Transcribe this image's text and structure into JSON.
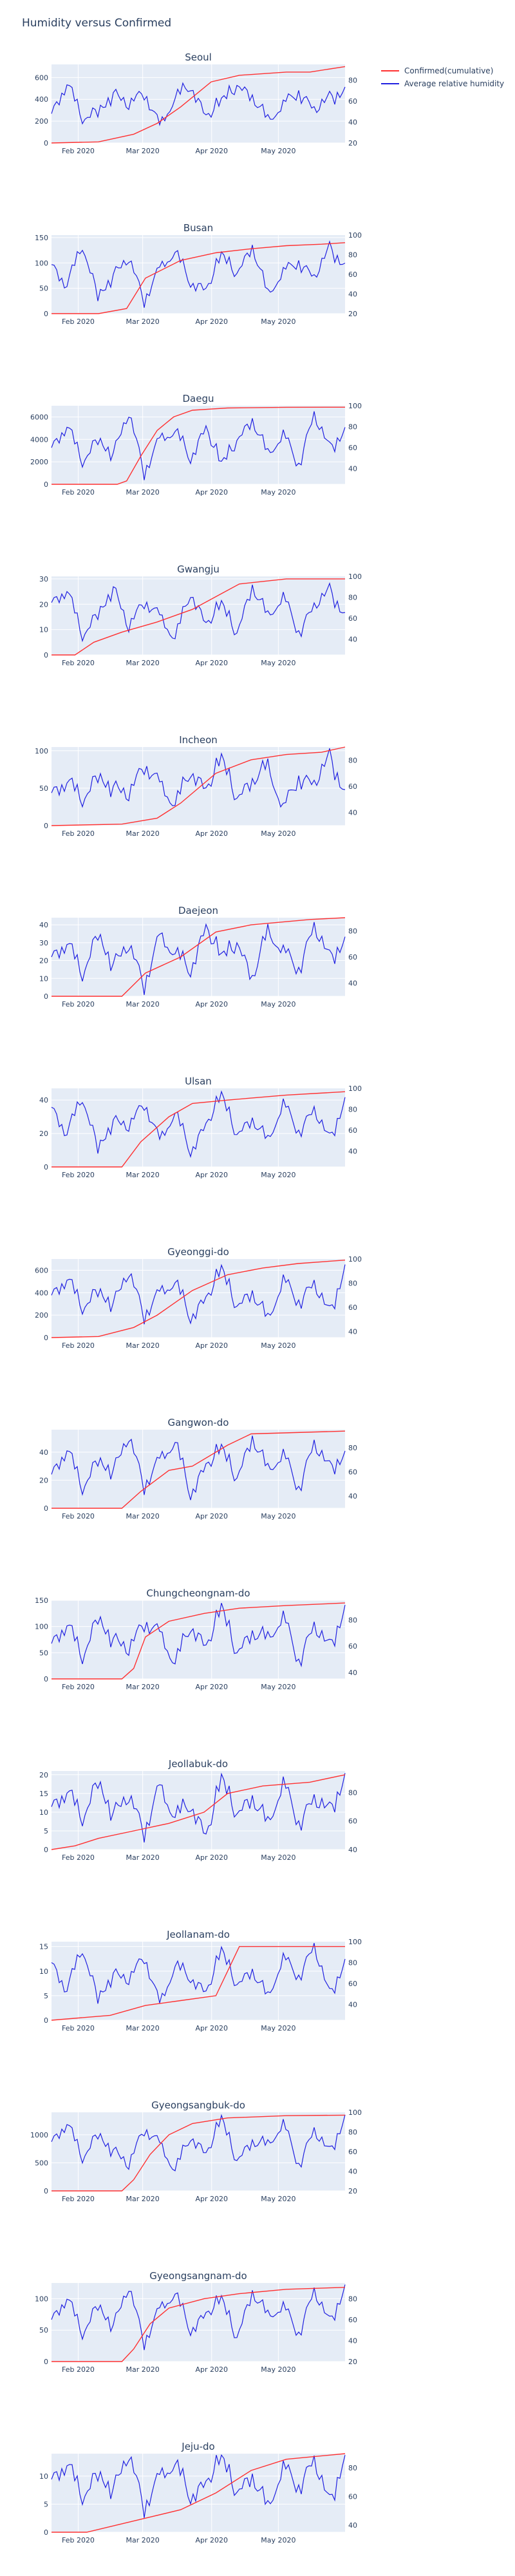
{
  "title": "Humidity versus Confirmed",
  "legend": [
    {
      "name": "Confirmed(cumulative)",
      "color": "#ff3030"
    },
    {
      "name": "Average relative humidity",
      "color": "#2020e0"
    }
  ],
  "colors": {
    "plot_bg": "#e5ecf6",
    "grid": "#ffffff",
    "axis_text": "#2a3f5f",
    "confirmed": "#ff3030",
    "humidity": "#2020e0"
  },
  "chart_data": [
    {
      "type": "line",
      "title": "Seoul",
      "x_tick_labels": [
        "Feb 2020",
        "Mar 2020",
        "Apr 2020",
        "May 2020"
      ],
      "x_range": [
        "2020-01-20",
        "2020-05-31"
      ],
      "y_left_ticks": [
        0,
        200,
        400,
        600
      ],
      "y_left_range": [
        0,
        720
      ],
      "y_right_ticks": [
        20,
        40,
        60,
        80
      ],
      "y_right_range": [
        20,
        95
      ],
      "confirmed": [
        [
          0,
          0
        ],
        [
          20,
          10
        ],
        [
          35,
          80
        ],
        [
          45,
          180
        ],
        [
          55,
          330
        ],
        [
          68,
          560
        ],
        [
          80,
          620
        ],
        [
          100,
          650
        ],
        [
          110,
          650
        ],
        [
          125,
          700
        ]
      ],
      "humidity": [
        48,
        78,
        42,
        52,
        68,
        55,
        70,
        36,
        62,
        75,
        46,
        58,
        74,
        66,
        40,
        56,
        70,
        50,
        64,
        72
      ]
    },
    {
      "type": "line",
      "title": "Busan",
      "x_tick_labels": [
        "Feb 2020",
        "Mar 2020",
        "Apr 2020",
        "May 2020"
      ],
      "x_range": [
        "2020-01-20",
        "2020-05-31"
      ],
      "y_left_ticks": [
        0,
        50,
        100,
        150
      ],
      "y_left_range": [
        0,
        155
      ],
      "y_right_ticks": [
        20,
        40,
        60,
        80,
        100
      ],
      "y_right_range": [
        20,
        100
      ],
      "confirmed": [
        [
          0,
          0
        ],
        [
          20,
          0
        ],
        [
          32,
          10
        ],
        [
          40,
          70
        ],
        [
          55,
          105
        ],
        [
          70,
          120
        ],
        [
          85,
          128
        ],
        [
          100,
          134
        ],
        [
          115,
          137
        ],
        [
          125,
          140
        ]
      ],
      "humidity": [
        70,
        50,
        88,
        40,
        60,
        75,
        35,
        66,
        82,
        52,
        45,
        78,
        60,
        90,
        38,
        62,
        74,
        55,
        88,
        70
      ]
    },
    {
      "type": "line",
      "title": "Daegu",
      "x_tick_labels": [
        "Feb 2020",
        "Mar 2020",
        "Apr 2020",
        "May 2020"
      ],
      "x_range": [
        "2020-01-20",
        "2020-05-31"
      ],
      "y_left_ticks": [
        0,
        2000,
        4000,
        6000
      ],
      "y_left_range": [
        0,
        7000
      ],
      "y_right_ticks": [
        40,
        60,
        80,
        100
      ],
      "y_right_range": [
        25,
        100
      ],
      "confirmed": [
        [
          0,
          0
        ],
        [
          28,
          0
        ],
        [
          32,
          300
        ],
        [
          38,
          2500
        ],
        [
          45,
          4800
        ],
        [
          52,
          6000
        ],
        [
          60,
          6600
        ],
        [
          75,
          6800
        ],
        [
          100,
          6860
        ],
        [
          125,
          6870
        ]
      ],
      "humidity": [
        60,
        82,
        45,
        70,
        55,
        92,
        38,
        68,
        75,
        50,
        80,
        42,
        66,
        88,
        52,
        72,
        45,
        90,
        60,
        78
      ]
    },
    {
      "type": "line",
      "title": "Gwangju",
      "x_tick_labels": [
        "Feb 2020",
        "Mar 2020",
        "Apr 2020",
        "May 2020"
      ],
      "x_range": [
        "2020-01-20",
        "2020-05-31"
      ],
      "y_left_ticks": [
        0,
        10,
        20,
        30
      ],
      "y_left_range": [
        0,
        31
      ],
      "y_right_ticks": [
        40,
        60,
        80,
        100
      ],
      "y_right_range": [
        25,
        100
      ],
      "confirmed": [
        [
          0,
          0
        ],
        [
          10,
          0
        ],
        [
          18,
          5
        ],
        [
          30,
          9
        ],
        [
          45,
          13
        ],
        [
          60,
          18
        ],
        [
          72,
          24
        ],
        [
          80,
          28
        ],
        [
          100,
          30
        ],
        [
          125,
          30
        ]
      ],
      "humidity": [
        75,
        88,
        42,
        66,
        90,
        50,
        78,
        62,
        40,
        85,
        55,
        72,
        45,
        92,
        60,
        80,
        48,
        70,
        88,
        64
      ]
    },
    {
      "type": "line",
      "title": "Incheon",
      "x_tick_labels": [
        "Feb 2020",
        "Mar 2020",
        "Apr 2020",
        "May 2020"
      ],
      "x_range": [
        "2020-01-20",
        "2020-05-31"
      ],
      "y_left_ticks": [
        0,
        50,
        100
      ],
      "y_left_range": [
        0,
        105
      ],
      "y_right_ticks": [
        40,
        60,
        80
      ],
      "y_right_range": [
        30,
        90
      ],
      "confirmed": [
        [
          0,
          0
        ],
        [
          30,
          2
        ],
        [
          45,
          10
        ],
        [
          55,
          30
        ],
        [
          70,
          70
        ],
        [
          85,
          88
        ],
        [
          100,
          95
        ],
        [
          115,
          98
        ],
        [
          125,
          105
        ]
      ],
      "humidity": [
        55,
        65,
        48,
        70,
        60,
        52,
        78,
        62,
        45,
        72,
        58,
        80,
        50,
        66,
        74,
        42,
        68,
        60,
        84,
        56
      ]
    },
    {
      "type": "line",
      "title": "Daejeon",
      "x_tick_labels": [
        "Feb 2020",
        "Mar 2020",
        "Apr 2020",
        "May 2020"
      ],
      "x_range": [
        "2020-01-20",
        "2020-05-31"
      ],
      "y_left_ticks": [
        0,
        10,
        20,
        30,
        40
      ],
      "y_left_range": [
        0,
        44
      ],
      "y_right_ticks": [
        40,
        60,
        80
      ],
      "y_right_range": [
        30,
        90
      ],
      "confirmed": [
        [
          0,
          0
        ],
        [
          30,
          0
        ],
        [
          40,
          13
        ],
        [
          55,
          22
        ],
        [
          70,
          36
        ],
        [
          85,
          40
        ],
        [
          110,
          43
        ],
        [
          125,
          44
        ]
      ],
      "humidity": [
        60,
        72,
        45,
        80,
        55,
        68,
        40,
        76,
        62,
        50,
        84,
        58,
        70,
        46,
        78,
        64,
        52,
        82,
        60,
        74
      ]
    },
    {
      "type": "line",
      "title": "Ulsan",
      "x_tick_labels": [
        "Feb 2020",
        "Mar 2020",
        "Apr 2020",
        "May 2020"
      ],
      "x_range": [
        "2020-01-20",
        "2020-05-31"
      ],
      "y_left_ticks": [
        0,
        20,
        40
      ],
      "y_left_range": [
        0,
        47
      ],
      "y_right_ticks": [
        40,
        60,
        80,
        100
      ],
      "y_right_range": [
        25,
        100
      ],
      "confirmed": [
        [
          0,
          0
        ],
        [
          30,
          0
        ],
        [
          38,
          15
        ],
        [
          50,
          30
        ],
        [
          60,
          38
        ],
        [
          75,
          40
        ],
        [
          100,
          43
        ],
        [
          125,
          45
        ]
      ],
      "humidity": [
        82,
        58,
        90,
        45,
        70,
        62,
        88,
        50,
        76,
        40,
        66,
        92,
        55,
        72,
        48,
        85,
        60,
        78,
        52,
        90
      ]
    },
    {
      "type": "line",
      "title": "Gyeonggi-do",
      "x_tick_labels": [
        "Feb 2020",
        "Mar 2020",
        "Apr 2020",
        "May 2020"
      ],
      "x_range": [
        "2020-01-20",
        "2020-05-31"
      ],
      "y_left_ticks": [
        0,
        200,
        400,
        600
      ],
      "y_left_range": [
        0,
        700
      ],
      "y_right_ticks": [
        40,
        60,
        80,
        100
      ],
      "y_right_range": [
        35,
        100
      ],
      "confirmed": [
        [
          0,
          0
        ],
        [
          20,
          10
        ],
        [
          35,
          90
        ],
        [
          45,
          200
        ],
        [
          60,
          420
        ],
        [
          75,
          560
        ],
        [
          90,
          620
        ],
        [
          105,
          660
        ],
        [
          125,
          690
        ]
      ],
      "humidity": [
        70,
        85,
        58,
        76,
        64,
        88,
        55,
        72,
        80,
        52,
        68,
        90,
        60,
        74,
        48,
        82,
        66,
        78,
        56,
        94
      ]
    },
    {
      "type": "line",
      "title": "Gangwon-do",
      "x_tick_labels": [
        "Feb 2020",
        "Mar 2020",
        "Apr 2020",
        "May 2020"
      ],
      "x_range": [
        "2020-01-20",
        "2020-05-31"
      ],
      "y_left_ticks": [
        0,
        20,
        40
      ],
      "y_left_range": [
        0,
        56
      ],
      "y_right_ticks": [
        40,
        60,
        80
      ],
      "y_right_range": [
        30,
        95
      ],
      "confirmed": [
        [
          0,
          0
        ],
        [
          30,
          0
        ],
        [
          38,
          12
        ],
        [
          50,
          27
        ],
        [
          60,
          30
        ],
        [
          75,
          45
        ],
        [
          85,
          53
        ],
        [
          125,
          55
        ]
      ],
      "humidity": [
        58,
        80,
        45,
        72,
        62,
        88,
        50,
        70,
        84,
        42,
        66,
        78,
        54,
        90,
        60,
        74,
        48,
        82,
        64,
        76
      ]
    },
    {
      "type": "line",
      "title": "Chungcheongnam-do",
      "x_tick_labels": [
        "Feb 2020",
        "Mar 2020",
        "Apr 2020",
        "May 2020"
      ],
      "x_range": [
        "2020-01-20",
        "2020-05-31"
      ],
      "y_left_ticks": [
        0,
        50,
        100,
        150
      ],
      "y_left_range": [
        0,
        150
      ],
      "y_right_ticks": [
        40,
        60,
        80
      ],
      "y_right_range": [
        35,
        95
      ],
      "confirmed": [
        [
          0,
          0
        ],
        [
          30,
          0
        ],
        [
          35,
          20
        ],
        [
          40,
          80
        ],
        [
          50,
          110
        ],
        [
          65,
          125
        ],
        [
          80,
          135
        ],
        [
          100,
          140
        ],
        [
          125,
          145
        ]
      ],
      "humidity": [
        62,
        78,
        50,
        84,
        66,
        56,
        80,
        70,
        46,
        76,
        60,
        88,
        54,
        72,
        64,
        82,
        50,
        74,
        60,
        90
      ]
    },
    {
      "type": "line",
      "title": "Jeollabuk-do",
      "x_tick_labels": [
        "Feb 2020",
        "Mar 2020",
        "Apr 2020",
        "May 2020"
      ],
      "x_range": [
        "2020-01-20",
        "2020-05-31"
      ],
      "y_left_ticks": [
        0,
        5,
        10,
        15,
        20
      ],
      "y_left_range": [
        0,
        21
      ],
      "y_right_ticks": [
        40,
        60,
        80
      ],
      "y_right_range": [
        40,
        95
      ],
      "confirmed": [
        [
          0,
          0
        ],
        [
          10,
          1
        ],
        [
          20,
          3
        ],
        [
          35,
          5
        ],
        [
          50,
          7
        ],
        [
          65,
          10
        ],
        [
          75,
          15
        ],
        [
          90,
          17
        ],
        [
          110,
          18
        ],
        [
          125,
          20
        ]
      ],
      "humidity": [
        70,
        82,
        60,
        90,
        66,
        76,
        54,
        84,
        62,
        72,
        50,
        88,
        64,
        78,
        56,
        86,
        60,
        74,
        68,
        92
      ]
    },
    {
      "type": "line",
      "title": "Jeollanam-do",
      "x_tick_labels": [
        "Feb 2020",
        "Mar 2020",
        "Apr 2020",
        "May 2020"
      ],
      "x_range": [
        "2020-01-20",
        "2020-05-31"
      ],
      "y_left_ticks": [
        0,
        5,
        10,
        15
      ],
      "y_left_range": [
        0,
        16
      ],
      "y_right_ticks": [
        40,
        60,
        80,
        100
      ],
      "y_right_range": [
        25,
        100
      ],
      "confirmed": [
        [
          0,
          0
        ],
        [
          25,
          1
        ],
        [
          40,
          3
        ],
        [
          55,
          4
        ],
        [
          70,
          5
        ],
        [
          80,
          15
        ],
        [
          125,
          15
        ]
      ],
      "humidity": [
        80,
        55,
        92,
        48,
        70,
        62,
        88,
        40,
        76,
        66,
        52,
        90,
        58,
        74,
        45,
        84,
        68,
        94,
        50,
        82
      ]
    },
    {
      "type": "line",
      "title": "Gyeongsangbuk-do",
      "x_tick_labels": [
        "Feb 2020",
        "Mar 2020",
        "Apr 2020",
        "May 2020"
      ],
      "x_range": [
        "2020-01-20",
        "2020-05-31"
      ],
      "y_left_ticks": [
        0,
        500,
        1000
      ],
      "y_left_range": [
        0,
        1400
      ],
      "y_right_ticks": [
        20,
        40,
        60,
        80,
        100
      ],
      "y_right_range": [
        20,
        100
      ],
      "confirmed": [
        [
          0,
          0
        ],
        [
          30,
          0
        ],
        [
          35,
          200
        ],
        [
          42,
          650
        ],
        [
          50,
          1000
        ],
        [
          60,
          1200
        ],
        [
          75,
          1300
        ],
        [
          100,
          1340
        ],
        [
          125,
          1350
        ]
      ],
      "humidity": [
        70,
        90,
        52,
        80,
        62,
        45,
        85,
        68,
        40,
        76,
        58,
        92,
        50,
        72,
        65,
        88,
        48,
        80,
        60,
        96
      ]
    },
    {
      "type": "line",
      "title": "Gyeongsangnam-do",
      "x_tick_labels": [
        "Feb 2020",
        "Mar 2020",
        "Apr 2020",
        "May 2020"
      ],
      "x_range": [
        "2020-01-20",
        "2020-05-31"
      ],
      "y_left_ticks": [
        0,
        50,
        100
      ],
      "y_left_range": [
        0,
        125
      ],
      "y_right_ticks": [
        20,
        40,
        60,
        80
      ],
      "y_right_range": [
        20,
        95
      ],
      "confirmed": [
        [
          0,
          0
        ],
        [
          30,
          0
        ],
        [
          35,
          20
        ],
        [
          42,
          60
        ],
        [
          50,
          85
        ],
        [
          65,
          100
        ],
        [
          80,
          108
        ],
        [
          100,
          115
        ],
        [
          125,
          118
        ]
      ],
      "humidity": [
        60,
        82,
        45,
        76,
        55,
        90,
        40,
        70,
        84,
        50,
        66,
        78,
        42,
        88,
        62,
        72,
        48,
        86,
        58,
        92
      ]
    },
    {
      "type": "line",
      "title": "Jeju-do",
      "x_tick_labels": [
        "Feb 2020",
        "Mar 2020",
        "Apr 2020",
        "May 2020"
      ],
      "x_range": [
        "2020-01-20",
        "2020-05-31"
      ],
      "y_left_ticks": [
        0,
        5,
        10
      ],
      "y_left_range": [
        0,
        14
      ],
      "y_right_ticks": [
        40,
        60,
        80
      ],
      "y_right_range": [
        35,
        90
      ],
      "confirmed": [
        [
          0,
          0
        ],
        [
          15,
          0
        ],
        [
          35,
          2
        ],
        [
          55,
          4
        ],
        [
          70,
          7
        ],
        [
          85,
          11
        ],
        [
          100,
          13
        ],
        [
          125,
          14
        ]
      ],
      "humidity": [
        72,
        84,
        58,
        78,
        66,
        88,
        54,
        74,
        82,
        60,
        70,
        86,
        62,
        76,
        50,
        80,
        68,
        84,
        56,
        90
      ]
    }
  ]
}
